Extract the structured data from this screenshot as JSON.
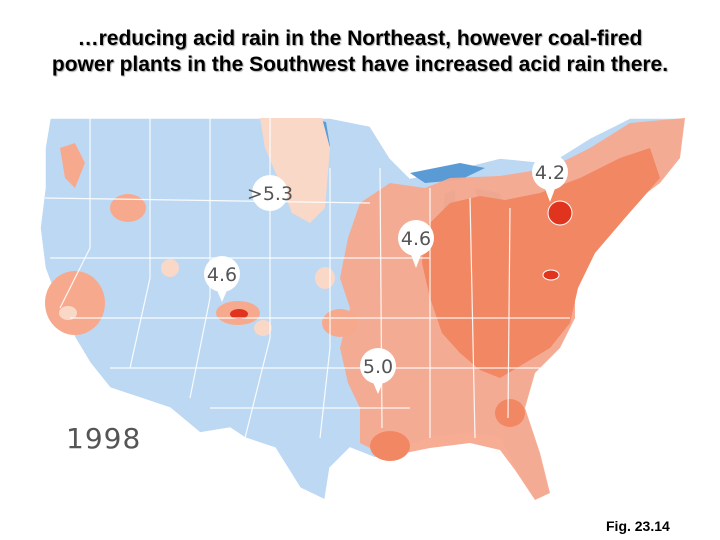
{
  "title": {
    "line1": "…reducing acid rain in the Northeast, however coal-fired",
    "line2": "power plants in the Southwest have increased acid rain there."
  },
  "map": {
    "year": "1998",
    "ph_labels": [
      ">5.3",
      "4.2",
      "4.6",
      "4.6",
      "5.0"
    ],
    "colors": {
      "land_blue": "#bdd8f3",
      "water_blue": "#5b9bd5",
      "acid_light": "#f7a98e",
      "acid_medium": "#f28763",
      "acid_strong": "#e0341f",
      "pale": "#f9d8c8",
      "border": "#ffffff"
    }
  },
  "caption": "Fig. 23.14"
}
